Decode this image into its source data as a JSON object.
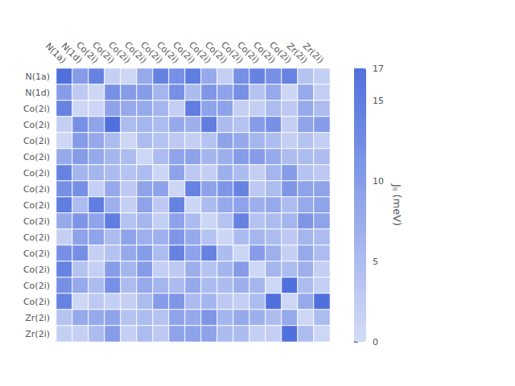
{
  "chart_data": {
    "type": "heatmap",
    "categories": [
      "N(1a)",
      "N(1d)",
      "Co(2i)",
      "Co(2i)",
      "Co(2i)",
      "Co(2i)",
      "Co(2i)",
      "Co(2i)",
      "Co(2i)",
      "Co(2i)",
      "Co(2i)",
      "Co(2i)",
      "Co(2i)",
      "Co(2i)",
      "Co(2i)",
      "Zr(2i)",
      "Zr(2i)"
    ],
    "values": [
      [
        17,
        10,
        14,
        2,
        1,
        8,
        14,
        12,
        15,
        8,
        2,
        12,
        14,
        12,
        14,
        4,
        2
      ],
      [
        10,
        3,
        1,
        12,
        10,
        10,
        6,
        12,
        5,
        11,
        9,
        12,
        4,
        8,
        1,
        8,
        2
      ],
      [
        14,
        1,
        1,
        9,
        8,
        8,
        6,
        2,
        15,
        9,
        9,
        2,
        2,
        5,
        3,
        8,
        5
      ],
      [
        2,
        12,
        9,
        17,
        5,
        6,
        5,
        8,
        7,
        15,
        5,
        4,
        10,
        12,
        2,
        9,
        10
      ],
      [
        1,
        10,
        8,
        5,
        1,
        5,
        4,
        3,
        2,
        4,
        9,
        8,
        6,
        5,
        2,
        4,
        2
      ],
      [
        8,
        10,
        8,
        6,
        5,
        1,
        5,
        9,
        9,
        6,
        7,
        10,
        10,
        8,
        5,
        5,
        5
      ],
      [
        14,
        6,
        6,
        5,
        4,
        5,
        1,
        9,
        3,
        2,
        7,
        5,
        2,
        6,
        10,
        4,
        3
      ],
      [
        12,
        12,
        2,
        8,
        3,
        9,
        9,
        1,
        14,
        9,
        11,
        14,
        3,
        5,
        11,
        9,
        9
      ],
      [
        15,
        5,
        15,
        7,
        2,
        9,
        3,
        14,
        1,
        5,
        8,
        9,
        7,
        8,
        5,
        8,
        9
      ],
      [
        8,
        11,
        9,
        15,
        4,
        6,
        2,
        9,
        5,
        1,
        4,
        14,
        4,
        5,
        6,
        11,
        9
      ],
      [
        2,
        9,
        9,
        5,
        9,
        7,
        7,
        11,
        8,
        4,
        1,
        5,
        6,
        5,
        3,
        6,
        5
      ],
      [
        12,
        12,
        2,
        4,
        8,
        10,
        5,
        14,
        9,
        14,
        5,
        1,
        10,
        7,
        2,
        8,
        5
      ],
      [
        14,
        4,
        2,
        10,
        6,
        10,
        2,
        3,
        7,
        4,
        6,
        10,
        1,
        6,
        5,
        7,
        2
      ],
      [
        12,
        8,
        5,
        12,
        5,
        8,
        6,
        5,
        8,
        5,
        5,
        7,
        6,
        1,
        17,
        5,
        2
      ],
      [
        14,
        1,
        3,
        2,
        2,
        5,
        10,
        11,
        5,
        6,
        3,
        2,
        5,
        17,
        1,
        8,
        17
      ],
      [
        4,
        8,
        8,
        9,
        4,
        5,
        4,
        9,
        8,
        11,
        6,
        8,
        7,
        5,
        8,
        1,
        5
      ],
      [
        2,
        2,
        5,
        10,
        2,
        5,
        3,
        9,
        9,
        9,
        5,
        5,
        2,
        2,
        17,
        5,
        1
      ]
    ],
    "colorbar_range": [
      0,
      17
    ],
    "colorbar_ticks": [
      0,
      5,
      10,
      15
    ],
    "colorbar_label": "Jᵢⱼ (meV)"
  }
}
